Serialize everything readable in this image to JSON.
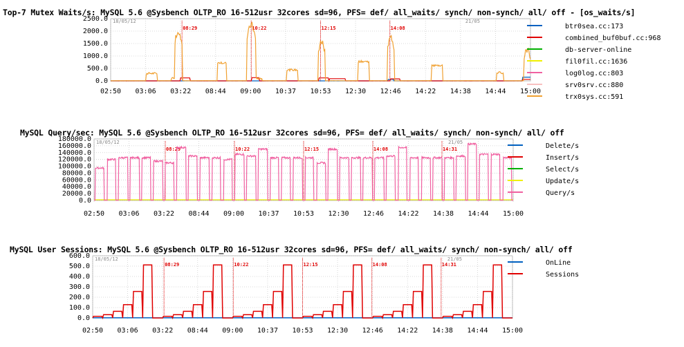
{
  "chart_data": [
    {
      "type": "line",
      "title": "Top-7 Mutex Waits/s: MySQL 5.6 @Sysbench OLTP_RO 16-512usr 32cores sd=96, PFS= def/ all_waits/ synch/ non-synch/ all/ off - [os_waits/s]",
      "xlabel": "",
      "ylabel": "",
      "ylim": [
        0,
        2500
      ],
      "yticks": [
        "0.0",
        "500.0",
        "1000.0",
        "1500.0",
        "2000.0",
        "2500.0"
      ],
      "x_ticks": [
        "02:50",
        "03:06",
        "03:22",
        "08:44",
        "09:00",
        "10:37",
        "10:53",
        "12:30",
        "12:46",
        "14:22",
        "14:38",
        "14:44",
        "15:00"
      ],
      "date_marks": [
        "18/05/12",
        "21/05"
      ],
      "markers": [
        "08:29",
        "10:22",
        "12:15",
        "14:08"
      ],
      "grid": true,
      "legend_position": "right",
      "series": [
        {
          "name": "btr0sea.cc:173",
          "color": "#0060c0"
        },
        {
          "name": "combined_buf0buf.cc:968",
          "color": "#e00000"
        },
        {
          "name": "db-server-online",
          "color": "#00b000"
        },
        {
          "name": "fil0fil.cc:1636",
          "color": "#f0f000"
        },
        {
          "name": "log0log.cc:803",
          "color": "#f060a0"
        },
        {
          "name": "srv0srv.cc:880",
          "color": "#f8c0c0"
        },
        {
          "name": "trx0sys.cc:591",
          "color": "#f0a030"
        }
      ]
    },
    {
      "type": "line",
      "title": "MySQL Query/sec: MySQL 5.6 @Sysbench OLTP_RO 16-512usr 32cores sd=96, PFS= def/ all_waits/ synch/ non-synch/ all/ off",
      "xlabel": "",
      "ylabel": "",
      "ylim": [
        0,
        180000
      ],
      "yticks": [
        "0.0",
        "20000.0",
        "40000.0",
        "60000.0",
        "80000.0",
        "100000.0",
        "120000.0",
        "140000.0",
        "160000.0",
        "180000.0"
      ],
      "x_ticks": [
        "02:50",
        "03:06",
        "03:22",
        "08:44",
        "09:00",
        "10:37",
        "10:53",
        "12:30",
        "12:46",
        "14:22",
        "14:38",
        "14:44",
        "15:00"
      ],
      "date_marks": [
        "18/05/12",
        "21/05"
      ],
      "markers": [
        "08:29",
        "10:22",
        "12:15",
        "14:08",
        "14:31"
      ],
      "grid": true,
      "legend_position": "right",
      "series": [
        {
          "name": "Delete/s",
          "color": "#0060c0"
        },
        {
          "name": "Insert/s",
          "color": "#e00000"
        },
        {
          "name": "Select/s",
          "color": "#00b000"
        },
        {
          "name": "Update/s",
          "color": "#f0f000"
        },
        {
          "name": "Query/s",
          "color": "#f060a0"
        }
      ]
    },
    {
      "type": "line",
      "title": "MySQL User Sessions: MySQL 5.6 @Sysbench OLTP_RO 16-512usr 32cores sd=96, PFS= def/ all_waits/ synch/ non-synch/ all/ off",
      "xlabel": "",
      "ylabel": "",
      "ylim": [
        0,
        600
      ],
      "yticks": [
        "0.0",
        "100.0",
        "200.0",
        "300.0",
        "400.0",
        "500.0",
        "600.0"
      ],
      "x_ticks": [
        "02:50",
        "03:06",
        "03:22",
        "08:44",
        "09:00",
        "10:37",
        "10:53",
        "12:30",
        "12:46",
        "14:22",
        "14:38",
        "14:44",
        "15:00"
      ],
      "date_marks": [
        "18/05/12",
        "21/05"
      ],
      "markers": [
        "08:29",
        "10:22",
        "12:15",
        "14:08",
        "14:31"
      ],
      "grid": true,
      "legend_position": "right",
      "series": [
        {
          "name": "OnLine",
          "color": "#0060c0",
          "values": [
            0
          ]
        },
        {
          "name": "Sessions",
          "color": "#e00000",
          "values": [
            16,
            32,
            64,
            128,
            256,
            512
          ]
        }
      ]
    }
  ]
}
